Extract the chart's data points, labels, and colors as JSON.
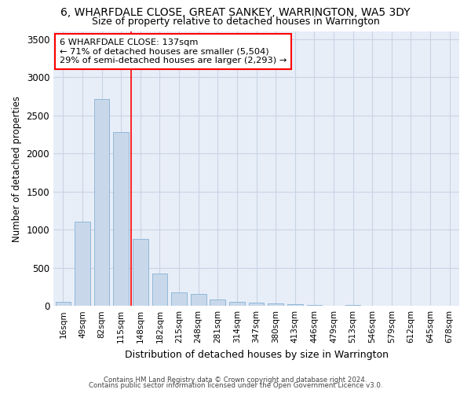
{
  "title1": "6, WHARFDALE CLOSE, GREAT SANKEY, WARRINGTON, WA5 3DY",
  "title2": "Size of property relative to detached houses in Warrington",
  "xlabel": "Distribution of detached houses by size in Warrington",
  "ylabel": "Number of detached properties",
  "categories": [
    "16sqm",
    "49sqm",
    "82sqm",
    "115sqm",
    "148sqm",
    "182sqm",
    "215sqm",
    "248sqm",
    "281sqm",
    "314sqm",
    "347sqm",
    "380sqm",
    "413sqm",
    "446sqm",
    "479sqm",
    "513sqm",
    "546sqm",
    "579sqm",
    "612sqm",
    "645sqm",
    "678sqm"
  ],
  "values": [
    55,
    1100,
    2710,
    2280,
    880,
    420,
    175,
    160,
    85,
    55,
    45,
    30,
    25,
    15,
    5,
    8,
    3,
    2,
    1,
    1,
    1
  ],
  "bar_color": "#c8d8ea",
  "bar_edge_color": "#90b8d8",
  "grid_color": "#c8d4e4",
  "background_color": "#e8eef8",
  "red_line_index": 4,
  "annotation_line1": "6 WHARFDALE CLOSE: 137sqm",
  "annotation_line2": "← 71% of detached houses are smaller (5,504)",
  "annotation_line3": "29% of semi-detached houses are larger (2,293) →",
  "footer1": "Contains HM Land Registry data © Crown copyright and database right 2024.",
  "footer2": "Contains public sector information licensed under the Open Government Licence v3.0.",
  "ylim": [
    0,
    3600
  ],
  "yticks": [
    0,
    500,
    1000,
    1500,
    2000,
    2500,
    3000,
    3500
  ]
}
